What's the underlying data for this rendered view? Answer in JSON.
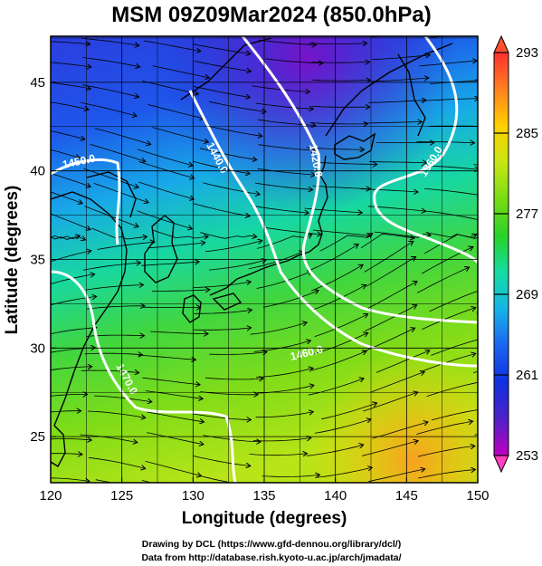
{
  "title": "MSM 09Z09Mar2024 (850.0hPa)",
  "x_label": "Longitude (degrees)",
  "y_label": "Latitude  (degrees)",
  "x_ticks": [
    120,
    125,
    130,
    135,
    140,
    145,
    150
  ],
  "y_ticks": [
    25,
    30,
    35,
    40,
    45
  ],
  "x_range": [
    120,
    150
  ],
  "y_range": [
    22.4,
    47.6
  ],
  "colorbar": {
    "range": [
      253,
      293
    ],
    "labels": [
      "293",
      "285",
      "277",
      "269",
      "261",
      "253"
    ],
    "label_values": [
      293,
      285,
      277,
      269,
      261,
      253
    ],
    "colors": [
      "#c000c0",
      "#5020c8",
      "#1030e0",
      "#1c64f0",
      "#16b4e6",
      "#14dca0",
      "#28d228",
      "#78dc14",
      "#c8e614",
      "#ffd000",
      "#ff8020",
      "#ff3030"
    ]
  },
  "contours": [
    {
      "label": "1440.0",
      "lon": 128.6,
      "lat": 43.0
    },
    {
      "label": "1420.0",
      "lon": 139.3,
      "lat": 41.9
    },
    {
      "label": "1360.0",
      "lon": 146.6,
      "lat": 41.9
    },
    {
      "label": "1450.0",
      "lon": 121.2,
      "lat": 40.7
    },
    {
      "label": "1460.0",
      "lon": 137.3,
      "lat": 30.0
    },
    {
      "label": "1470.0",
      "lon": 125.4,
      "lat": 29.2
    }
  ],
  "credits": [
    "Drawing by DCL (https://www.gfd-dennou.org/library/dcl/)",
    "Data from http://database.rish.kyoto-u.ac.jp/arch/jmadata/"
  ],
  "colors": {
    "contour": "#ffffff",
    "streamline": "#000000",
    "coast": "#000000",
    "grid": "#000000"
  }
}
